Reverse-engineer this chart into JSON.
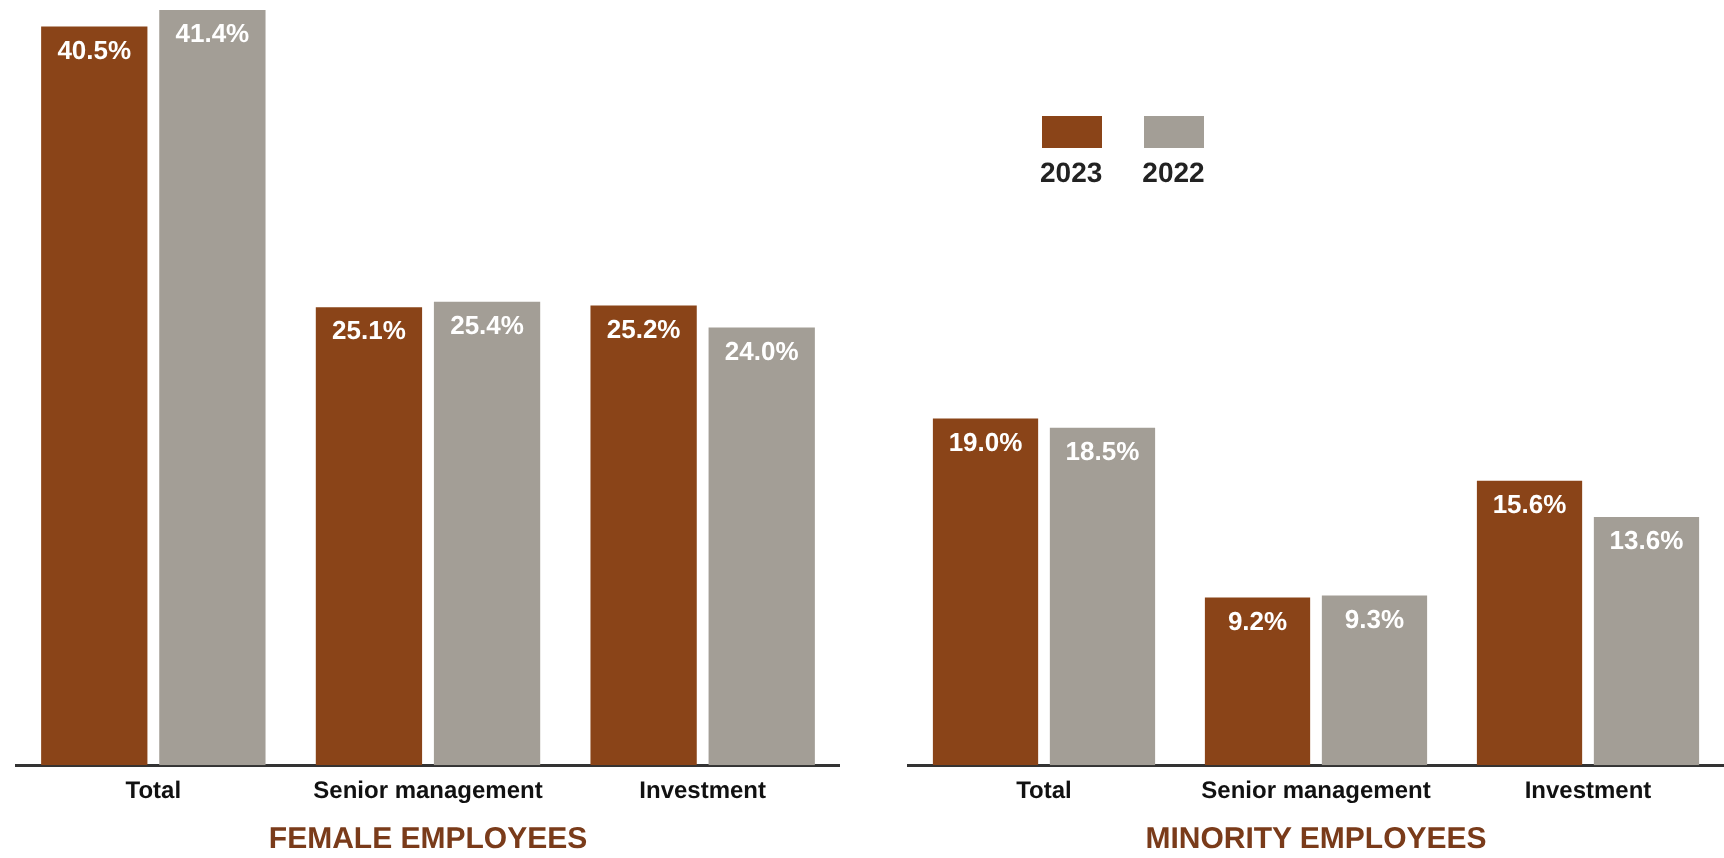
{
  "chart_data": [
    {
      "type": "bar",
      "xlabel": "FEMALE EMPLOYEES",
      "categories": [
        "Total",
        "Senior management",
        "Investment"
      ],
      "tick_labels": "x",
      "grid": false,
      "legend": false,
      "series": [
        {
          "color": "#8a4418",
          "values": [
            40.5,
            25.1,
            25.2
          ],
          "value_labels": [
            "40.5%",
            "25.1%",
            "25.2%"
          ]
        },
        {
          "color": "#a39e96",
          "values": [
            41.4,
            25.4,
            24.0
          ],
          "value_labels": [
            "41.4%",
            "25.4%",
            "24.0%"
          ]
        }
      ]
    },
    {
      "type": "bar",
      "xlabel": "MINORITY EMPLOYEES",
      "categories": [
        "Total",
        "Senior management",
        "Investment"
      ],
      "tick_labels": "x",
      "grid": false,
      "legend": "top left",
      "series": [
        {
          "name": "2023",
          "color": "#8a4418",
          "values": [
            19.0,
            9.2,
            15.6
          ],
          "value_labels": [
            "19.0%",
            "9.2%",
            "15.6%"
          ]
        },
        {
          "name": "2022",
          "color": "#a39e96",
          "values": [
            18.5,
            9.3,
            13.6
          ],
          "value_labels": [
            "18.5%",
            "9.3%",
            "13.6%"
          ]
        }
      ]
    }
  ]
}
